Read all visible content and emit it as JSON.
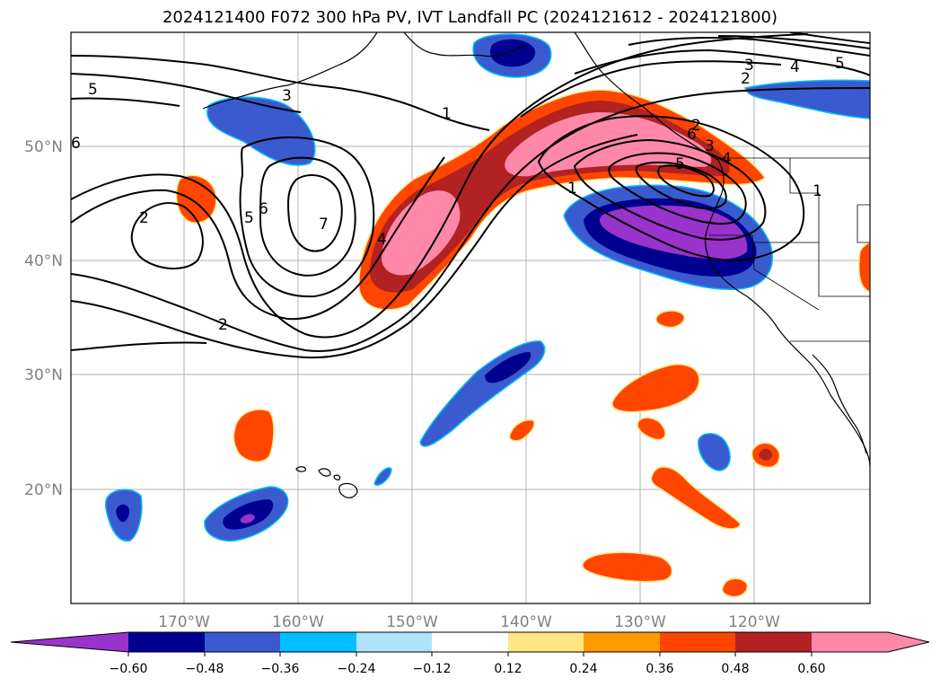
{
  "title": "2024121400 F072 300 hPa PV, IVT Landfall PC (2024121612 - 2024121800)",
  "lon_labels": [
    "170°W",
    "160°W",
    "150°W",
    "140°W",
    "130°W",
    "120°W"
  ],
  "lat_labels": [
    "50°N",
    "40°N",
    "30°N",
    "20°N"
  ],
  "contour_labels": [
    "1",
    "2",
    "3",
    "4",
    "5",
    "6",
    "7",
    "2",
    "5",
    "6",
    "1",
    "5",
    "6",
    "4",
    "3",
    "2",
    "1",
    "2",
    "3",
    "4",
    "5"
  ],
  "colorbar": {
    "ticks": [
      "−0.60",
      "−0.48",
      "−0.36",
      "−0.24",
      "−0.12",
      "0.12",
      "0.24",
      "0.36",
      "0.48",
      "0.60"
    ],
    "colors": [
      "#9933cc",
      "#000090",
      "#3a5bcf",
      "#00bfff",
      "#aee3fb",
      "#ffffff",
      "#ffe680",
      "#ff9900",
      "#ff4500",
      "#b22222",
      "#ff88aa",
      "#ff88aa"
    ],
    "extend": "both"
  },
  "colors": {
    "neg_strong": "#000090",
    "neg_mid": "#3a5bcf",
    "neg_extreme": "#9933cc",
    "pos_mid": "#ff4500",
    "pos_strong": "#b22222",
    "pos_extreme": "#ff88aa"
  }
}
